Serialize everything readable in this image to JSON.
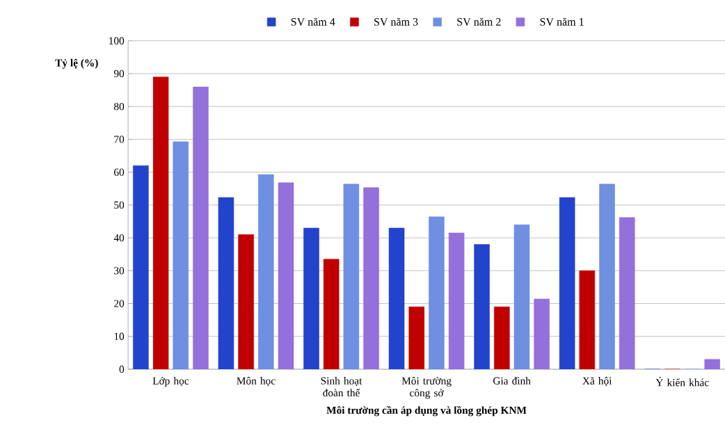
{
  "chart_data": {
    "type": "bar",
    "xlabel": "Môi trường cần áp dụng và lồng ghép KNM",
    "ylabel": "Tỷ lệ (%)",
    "categories": [
      "Lớp học",
      "Môn học",
      "Sinh hoạt đoàn thể",
      "Môi trường công sở",
      "Gia đình",
      "Xã hội",
      "Ý kiến khác"
    ],
    "series": [
      {
        "name": "SV năm 4",
        "color": "#2244cc",
        "values": [
          62,
          52.3,
          43,
          43,
          38,
          52.3,
          0
        ]
      },
      {
        "name": "SV năm 3",
        "color": "#c00000",
        "values": [
          89,
          41,
          33.5,
          19,
          19,
          30,
          0
        ]
      },
      {
        "name": "SV năm 2",
        "color": "#6f8fe0",
        "values": [
          69.3,
          59.3,
          56.4,
          46.4,
          44,
          56.4,
          0
        ]
      },
      {
        "name": "SV năm 1",
        "color": "#9370db",
        "values": [
          86,
          56.8,
          55.3,
          41.5,
          21.4,
          46.2,
          3
        ]
      }
    ],
    "ylim": [
      0,
      100
    ],
    "yticks": [
      0,
      10,
      20,
      30,
      40,
      50,
      60,
      70,
      80,
      90,
      100
    ],
    "grid": "y",
    "legend": "top"
  }
}
